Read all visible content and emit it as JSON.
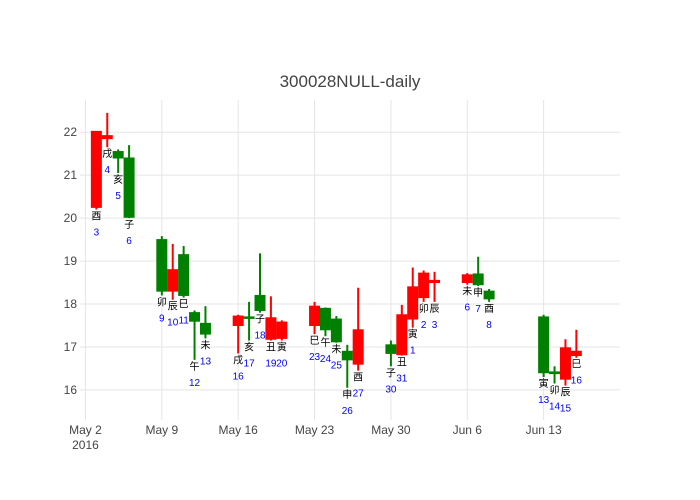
{
  "chart_data": {
    "type": "candlestick",
    "title": "300028NULL-daily",
    "ylim": [
      15.3,
      22.75
    ],
    "yticks": [
      16,
      17,
      18,
      19,
      20,
      21,
      22
    ],
    "xlim": [
      "2016-05-01 12:00",
      "2016-06-20 00:00"
    ],
    "xticks": [
      {
        "date": "2016-05-02",
        "label": "May 2",
        "label2": "2016"
      },
      {
        "date": "2016-05-09",
        "label": "May 9",
        "label2": ""
      },
      {
        "date": "2016-05-16",
        "label": "May 16",
        "label2": ""
      },
      {
        "date": "2016-05-23",
        "label": "May 23",
        "label2": ""
      },
      {
        "date": "2016-05-30",
        "label": "May 30",
        "label2": ""
      },
      {
        "date": "2016-06-06",
        "label": "Jun 6",
        "label2": ""
      },
      {
        "date": "2016-06-13",
        "label": "Jun 13",
        "label2": ""
      }
    ],
    "colors": {
      "up": "#ff0000",
      "down": "#008000",
      "label": "#0000ff"
    },
    "candles": [
      {
        "date": "2016-05-03",
        "open": 20.25,
        "high": 22.02,
        "low": 20.2,
        "close": 22.02,
        "branch": "酉",
        "day": "3"
      },
      {
        "date": "2016-05-04",
        "open": 21.85,
        "high": 22.45,
        "low": 21.65,
        "close": 21.92,
        "branch": "戌",
        "day": "4"
      },
      {
        "date": "2016-05-05",
        "open": 21.55,
        "high": 21.6,
        "low": 21.05,
        "close": 21.4,
        "branch": "亥",
        "day": "5"
      },
      {
        "date": "2016-05-06",
        "open": 21.4,
        "high": 21.7,
        "low": 20.0,
        "close": 20.02,
        "branch": "子",
        "day": "6"
      },
      {
        "date": "2016-05-09",
        "open": 19.5,
        "high": 19.58,
        "low": 18.2,
        "close": 18.3,
        "branch": "卯",
        "day": "9"
      },
      {
        "date": "2016-05-10",
        "open": 18.3,
        "high": 19.4,
        "low": 18.1,
        "close": 18.8,
        "branch": "辰",
        "day": "10"
      },
      {
        "date": "2016-05-11",
        "open": 19.15,
        "high": 19.35,
        "low": 18.15,
        "close": 18.2,
        "branch": "巳",
        "day": "11"
      },
      {
        "date": "2016-05-12",
        "open": 17.8,
        "high": 17.85,
        "low": 16.7,
        "close": 17.6,
        "branch": "午",
        "day": "12"
      },
      {
        "date": "2016-05-13",
        "open": 17.55,
        "high": 17.95,
        "low": 17.2,
        "close": 17.3,
        "branch": "未",
        "day": "13"
      },
      {
        "date": "2016-05-16",
        "open": 17.5,
        "high": 17.75,
        "low": 16.85,
        "close": 17.72,
        "branch": "戌",
        "day": "16"
      },
      {
        "date": "2016-05-17",
        "open": 17.7,
        "high": 18.05,
        "low": 17.15,
        "close": 17.68,
        "branch": "亥",
        "day": "17"
      },
      {
        "date": "2016-05-18",
        "open": 18.2,
        "high": 19.18,
        "low": 17.8,
        "close": 17.85,
        "branch": "子",
        "day": "18"
      },
      {
        "date": "2016-05-19",
        "open": 17.18,
        "high": 18.18,
        "low": 17.15,
        "close": 17.68,
        "branch": "丑",
        "day": "19"
      },
      {
        "date": "2016-05-20",
        "open": 17.2,
        "high": 17.62,
        "low": 17.15,
        "close": 17.58,
        "branch": "寅",
        "day": "20"
      },
      {
        "date": "2016-05-23",
        "open": 17.5,
        "high": 18.05,
        "low": 17.3,
        "close": 17.95,
        "branch": "巳",
        "day": "23"
      },
      {
        "date": "2016-05-24",
        "open": 17.9,
        "high": 17.92,
        "low": 17.25,
        "close": 17.4,
        "branch": "午",
        "day": "24"
      },
      {
        "date": "2016-05-25",
        "open": 17.65,
        "high": 17.72,
        "low": 17.1,
        "close": 17.12,
        "branch": "未",
        "day": "25"
      },
      {
        "date": "2016-05-26",
        "open": 16.9,
        "high": 17.05,
        "low": 16.05,
        "close": 16.7,
        "branch": "申",
        "day": "26"
      },
      {
        "date": "2016-05-27",
        "open": 16.6,
        "high": 18.38,
        "low": 16.45,
        "close": 17.4,
        "branch": "酉",
        "day": "27"
      },
      {
        "date": "2016-05-30",
        "open": 17.05,
        "high": 17.15,
        "low": 16.55,
        "close": 16.85,
        "branch": "子",
        "day": "30"
      },
      {
        "date": "2016-05-31",
        "open": 16.82,
        "high": 17.98,
        "low": 16.8,
        "close": 17.75,
        "branch": "丑",
        "day": "31"
      },
      {
        "date": "2016-06-01",
        "open": 17.65,
        "high": 18.85,
        "low": 17.45,
        "close": 18.4,
        "branch": "寅",
        "day": "1"
      },
      {
        "date": "2016-06-02",
        "open": 18.15,
        "high": 18.78,
        "low": 18.05,
        "close": 18.72,
        "branch": "卯",
        "day": "2"
      },
      {
        "date": "2016-06-03",
        "open": 18.5,
        "high": 18.75,
        "low": 18.05,
        "close": 18.55,
        "branch": "辰",
        "day": "3"
      },
      {
        "date": "2016-06-06",
        "open": 18.5,
        "high": 18.72,
        "low": 18.45,
        "close": 18.68,
        "branch": "未",
        "day": "6"
      },
      {
        "date": "2016-06-07",
        "open": 18.7,
        "high": 19.1,
        "low": 18.42,
        "close": 18.45,
        "branch": "申",
        "day": "7"
      },
      {
        "date": "2016-06-08",
        "open": 18.3,
        "high": 18.35,
        "low": 18.05,
        "close": 18.12,
        "branch": "酉",
        "day": "8"
      },
      {
        "date": "2016-06-13",
        "open": 17.7,
        "high": 17.75,
        "low": 16.3,
        "close": 16.4,
        "branch": "寅",
        "day": "13"
      },
      {
        "date": "2016-06-14",
        "open": 16.42,
        "high": 16.55,
        "low": 16.15,
        "close": 16.38,
        "branch": "卯",
        "day": "14"
      },
      {
        "date": "2016-06-15",
        "open": 16.25,
        "high": 17.18,
        "low": 16.1,
        "close": 16.98,
        "branch": "辰",
        "day": "15"
      },
      {
        "date": "2016-06-16",
        "open": 16.8,
        "high": 17.4,
        "low": 16.75,
        "close": 16.9,
        "branch": "巳",
        "day": "16"
      }
    ]
  }
}
